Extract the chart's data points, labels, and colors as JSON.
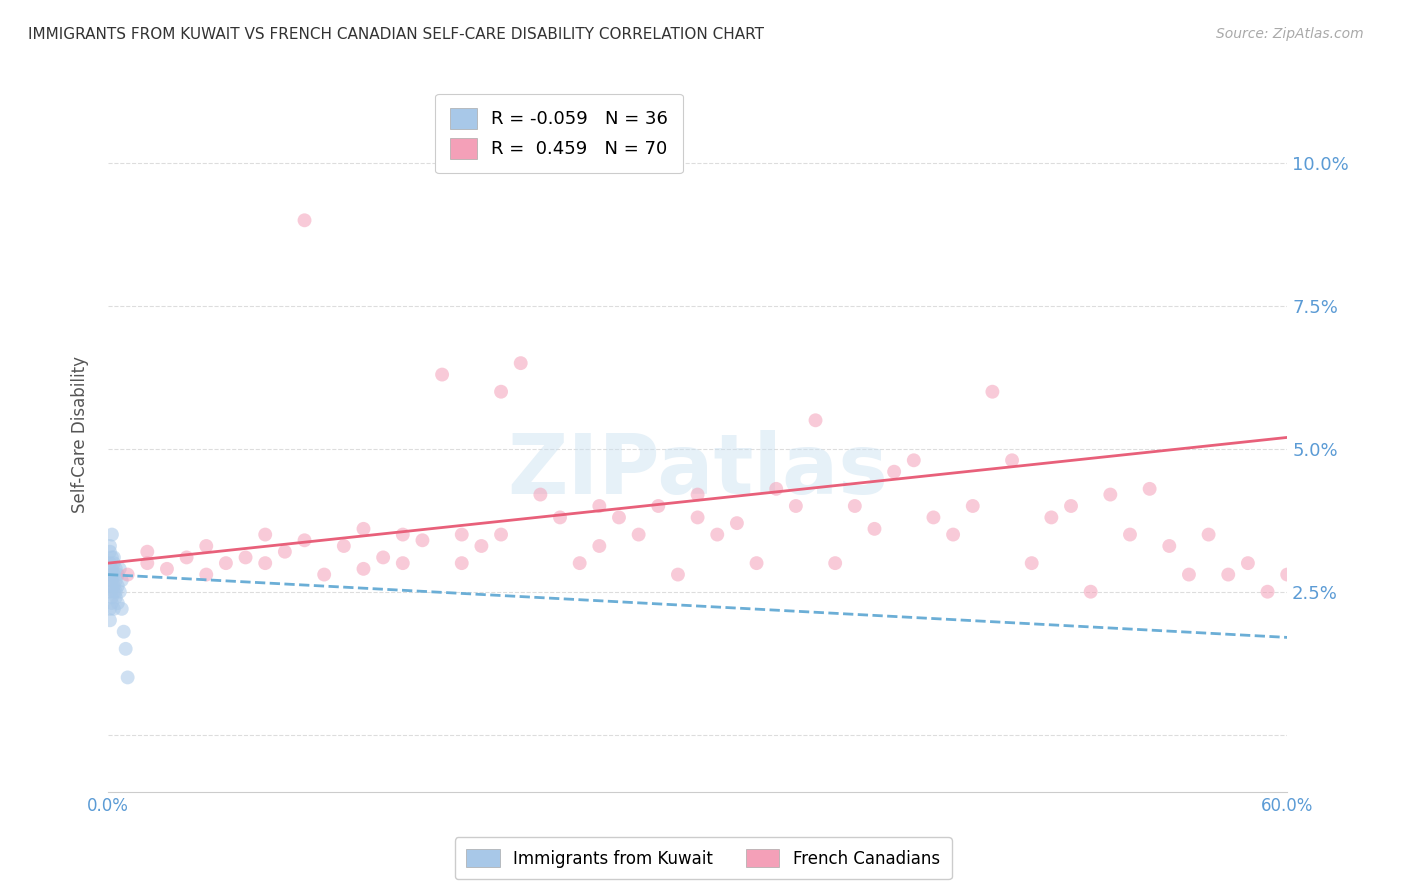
{
  "title": "IMMIGRANTS FROM KUWAIT VS FRENCH CANADIAN SELF-CARE DISABILITY CORRELATION CHART",
  "source": "Source: ZipAtlas.com",
  "ylabel": "Self-Care Disability",
  "xlim": [
    0.0,
    0.6
  ],
  "ylim": [
    -0.01,
    0.115
  ],
  "ytick_vals": [
    0.0,
    0.025,
    0.05,
    0.075,
    0.1
  ],
  "ytick_labels": [
    "",
    "2.5%",
    "5.0%",
    "7.5%",
    "10.0%"
  ],
  "xtick_vals": [
    0.0,
    0.1,
    0.2,
    0.3,
    0.4,
    0.5,
    0.6
  ],
  "xtick_labels": [
    "0.0%",
    "",
    "",
    "",
    "",
    "",
    "60.0%"
  ],
  "series1_color": "#a8c8e8",
  "series2_color": "#f4a0b8",
  "line1_color": "#6baed6",
  "line2_color": "#e8607a",
  "background_color": "#ffffff",
  "grid_color": "#dddddd",
  "axis_label_color": "#5b9bd5",
  "title_color": "#333333",
  "kuwait_R": -0.059,
  "kuwait_N": 36,
  "french_R": 0.459,
  "french_N": 70,
  "marker_size": 100,
  "marker_alpha": 0.55,
  "line_width": 2.0,
  "kuwait_x": [
    0.001,
    0.001,
    0.001,
    0.001,
    0.001,
    0.001,
    0.001,
    0.001,
    0.002,
    0.002,
    0.002,
    0.002,
    0.002,
    0.002,
    0.002,
    0.002,
    0.003,
    0.003,
    0.003,
    0.003,
    0.003,
    0.003,
    0.004,
    0.004,
    0.004,
    0.004,
    0.005,
    0.005,
    0.005,
    0.006,
    0.006,
    0.007,
    0.007,
    0.008,
    0.009,
    0.01
  ],
  "kuwait_y": [
    0.028,
    0.025,
    0.03,
    0.032,
    0.027,
    0.022,
    0.02,
    0.033,
    0.029,
    0.026,
    0.031,
    0.024,
    0.028,
    0.023,
    0.035,
    0.027,
    0.03,
    0.025,
    0.028,
    0.022,
    0.026,
    0.031,
    0.027,
    0.025,
    0.029,
    0.024,
    0.028,
    0.026,
    0.023,
    0.025,
    0.029,
    0.022,
    0.027,
    0.018,
    0.015,
    0.01
  ],
  "french_x": [
    0.01,
    0.02,
    0.02,
    0.03,
    0.04,
    0.05,
    0.05,
    0.06,
    0.07,
    0.08,
    0.08,
    0.09,
    0.1,
    0.1,
    0.11,
    0.12,
    0.13,
    0.13,
    0.14,
    0.15,
    0.15,
    0.16,
    0.17,
    0.18,
    0.18,
    0.19,
    0.2,
    0.2,
    0.21,
    0.22,
    0.23,
    0.24,
    0.25,
    0.25,
    0.26,
    0.27,
    0.28,
    0.29,
    0.3,
    0.3,
    0.31,
    0.32,
    0.33,
    0.34,
    0.35,
    0.36,
    0.37,
    0.38,
    0.39,
    0.4,
    0.41,
    0.42,
    0.43,
    0.44,
    0.45,
    0.46,
    0.47,
    0.48,
    0.49,
    0.5,
    0.51,
    0.52,
    0.53,
    0.54,
    0.55,
    0.56,
    0.57,
    0.58,
    0.59,
    0.6
  ],
  "french_y": [
    0.028,
    0.03,
    0.032,
    0.029,
    0.031,
    0.028,
    0.033,
    0.03,
    0.031,
    0.03,
    0.035,
    0.032,
    0.09,
    0.034,
    0.028,
    0.033,
    0.029,
    0.036,
    0.031,
    0.03,
    0.035,
    0.034,
    0.063,
    0.03,
    0.035,
    0.033,
    0.06,
    0.035,
    0.065,
    0.042,
    0.038,
    0.03,
    0.033,
    0.04,
    0.038,
    0.035,
    0.04,
    0.028,
    0.042,
    0.038,
    0.035,
    0.037,
    0.03,
    0.043,
    0.04,
    0.055,
    0.03,
    0.04,
    0.036,
    0.046,
    0.048,
    0.038,
    0.035,
    0.04,
    0.06,
    0.048,
    0.03,
    0.038,
    0.04,
    0.025,
    0.042,
    0.035,
    0.043,
    0.033,
    0.028,
    0.035,
    0.028,
    0.03,
    0.025,
    0.028
  ]
}
